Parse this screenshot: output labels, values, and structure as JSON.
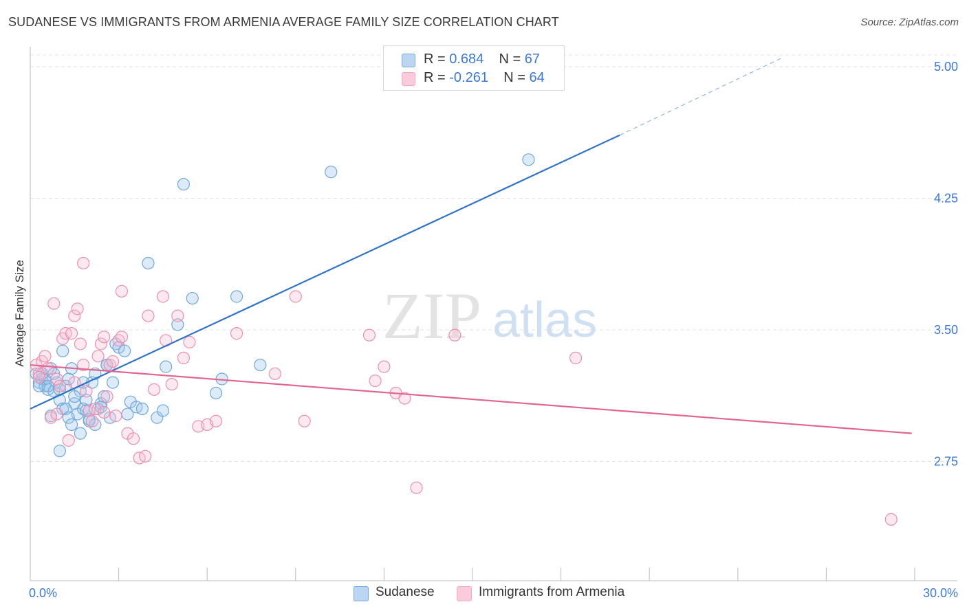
{
  "title": "SUDANESE VS IMMIGRANTS FROM ARMENIA AVERAGE FAMILY SIZE CORRELATION CHART",
  "source": "Source: ZipAtlas.com",
  "watermark": {
    "zip": "ZIP",
    "atlas": "atlas"
  },
  "legend_box": {
    "rows": [
      {
        "r_label": "R =",
        "r_value": "0.684",
        "n_label": "N =",
        "n_value": "67"
      },
      {
        "r_label": "R =",
        "r_value": "-0.261",
        "n_label": "N =",
        "n_value": "64"
      }
    ]
  },
  "bottom_legend": [
    "Sudanese",
    "Immigrants from Armenia"
  ],
  "chart_data": {
    "type": "scatter",
    "title": "SUDANESE VS IMMIGRANTS FROM ARMENIA AVERAGE FAMILY SIZE CORRELATION CHART",
    "xlabel": "",
    "ylabel": "Average Family Size",
    "xlim": [
      0,
      30
    ],
    "ylim": [
      2.0,
      5.15
    ],
    "x_tick_labels": [
      "0.0%",
      "30.0%"
    ],
    "y_ticks": [
      2.75,
      3.5,
      4.25,
      5.0
    ],
    "y_tick_labels": [
      "2.75",
      "3.50",
      "4.25",
      "5.00"
    ],
    "grid": "horizontal dashed",
    "legend_position": "top-center",
    "colors": {
      "blue": "#6fa8dc",
      "blue_line": "#2f73c9",
      "pink": "#f4a7c0",
      "pink_line": "#e0668f",
      "tick_text": "#3c78d8"
    },
    "series": [
      {
        "name": "Sudanese",
        "color": "#6fa8dc",
        "trend": {
          "x0": 0,
          "y0": 3.05,
          "x1": 20.0,
          "y1": 4.61,
          "dashed_to_x": 25.5,
          "dashed_to_y": 5.05
        },
        "points": [
          [
            0.2,
            3.25
          ],
          [
            0.3,
            3.2
          ],
          [
            0.4,
            3.22
          ],
          [
            0.5,
            3.18
          ],
          [
            0.6,
            3.16
          ],
          [
            0.7,
            3.28
          ],
          [
            0.8,
            3.15
          ],
          [
            0.9,
            3.2
          ],
          [
            1.0,
            3.1
          ],
          [
            1.1,
            3.05
          ],
          [
            1.2,
            3.18
          ],
          [
            1.3,
            3.22
          ],
          [
            1.4,
            3.28
          ],
          [
            1.5,
            3.08
          ],
          [
            1.6,
            3.02
          ],
          [
            1.7,
            3.15
          ],
          [
            1.8,
            3.05
          ],
          [
            1.9,
            3.1
          ],
          [
            2.0,
            2.98
          ],
          [
            2.1,
            3.2
          ],
          [
            2.2,
            3.25
          ],
          [
            2.3,
            3.05
          ],
          [
            2.4,
            3.08
          ],
          [
            2.5,
            3.12
          ],
          [
            2.6,
            3.3
          ],
          [
            2.7,
            3.0
          ],
          [
            2.8,
            3.2
          ],
          [
            2.9,
            3.42
          ],
          [
            3.0,
            3.4
          ],
          [
            3.2,
            3.38
          ],
          [
            3.3,
            3.02
          ],
          [
            3.4,
            3.09
          ],
          [
            3.6,
            3.06
          ],
          [
            3.8,
            3.05
          ],
          [
            4.0,
            3.88
          ],
          [
            4.3,
            3.0
          ],
          [
            4.5,
            3.04
          ],
          [
            4.6,
            3.29
          ],
          [
            5.0,
            3.53
          ],
          [
            5.2,
            4.33
          ],
          [
            5.5,
            3.68
          ],
          [
            6.3,
            3.14
          ],
          [
            6.5,
            3.22
          ],
          [
            7.0,
            3.69
          ],
          [
            7.8,
            3.3
          ],
          [
            10.2,
            4.4
          ],
          [
            16.9,
            4.47
          ],
          [
            0.5,
            3.22
          ],
          [
            0.6,
            3.18
          ],
          [
            0.8,
            3.25
          ],
          [
            1.0,
            3.16
          ],
          [
            1.2,
            3.05
          ],
          [
            1.3,
            3.0
          ],
          [
            1.4,
            2.96
          ],
          [
            1.5,
            3.12
          ],
          [
            1.7,
            2.91
          ],
          [
            1.9,
            3.04
          ],
          [
            2.0,
            2.99
          ],
          [
            2.2,
            2.96
          ],
          [
            2.4,
            3.06
          ],
          [
            0.3,
            3.18
          ],
          [
            0.4,
            3.25
          ],
          [
            1.0,
            2.81
          ],
          [
            1.8,
            3.2
          ],
          [
            2.6,
            3.3
          ],
          [
            1.1,
            3.38
          ],
          [
            0.7,
            3.01
          ]
        ]
      },
      {
        "name": "Immigrants from Armenia",
        "color": "#f4a7c0",
        "trend": {
          "x0": 0,
          "y0": 3.3,
          "x1": 29.9,
          "y1": 2.91
        },
        "points": [
          [
            0.2,
            3.3
          ],
          [
            0.3,
            3.25
          ],
          [
            0.4,
            3.32
          ],
          [
            0.5,
            3.35
          ],
          [
            0.6,
            3.28
          ],
          [
            0.7,
            3.0
          ],
          [
            0.8,
            3.65
          ],
          [
            0.9,
            3.22
          ],
          [
            1.0,
            3.18
          ],
          [
            1.1,
            3.45
          ],
          [
            1.2,
            3.48
          ],
          [
            1.3,
            2.87
          ],
          [
            1.4,
            3.48
          ],
          [
            1.5,
            3.58
          ],
          [
            1.6,
            3.62
          ],
          [
            1.7,
            3.42
          ],
          [
            1.8,
            3.3
          ],
          [
            1.9,
            3.15
          ],
          [
            2.0,
            3.04
          ],
          [
            2.1,
            2.98
          ],
          [
            2.2,
            3.05
          ],
          [
            2.3,
            3.35
          ],
          [
            2.4,
            3.42
          ],
          [
            2.5,
            3.46
          ],
          [
            2.6,
            3.12
          ],
          [
            2.7,
            3.3
          ],
          [
            2.8,
            3.32
          ],
          [
            2.9,
            3.01
          ],
          [
            3.0,
            3.44
          ],
          [
            3.1,
            3.46
          ],
          [
            3.3,
            2.91
          ],
          [
            3.5,
            2.88
          ],
          [
            3.7,
            2.77
          ],
          [
            3.9,
            2.78
          ],
          [
            4.0,
            3.58
          ],
          [
            4.2,
            3.16
          ],
          [
            4.5,
            3.69
          ],
          [
            4.6,
            3.44
          ],
          [
            4.8,
            3.19
          ],
          [
            5.0,
            3.58
          ],
          [
            5.2,
            3.34
          ],
          [
            5.4,
            3.43
          ],
          [
            5.7,
            2.95
          ],
          [
            6.0,
            2.96
          ],
          [
            6.3,
            2.98
          ],
          [
            7.0,
            3.48
          ],
          [
            8.3,
            3.25
          ],
          [
            9.0,
            3.69
          ],
          [
            9.3,
            2.98
          ],
          [
            11.5,
            3.47
          ],
          [
            11.7,
            3.21
          ],
          [
            12.0,
            3.29
          ],
          [
            12.4,
            3.14
          ],
          [
            12.7,
            3.11
          ],
          [
            13.1,
            2.6
          ],
          [
            14.4,
            3.47
          ],
          [
            18.5,
            3.34
          ],
          [
            29.2,
            2.42
          ],
          [
            1.8,
            3.88
          ],
          [
            2.5,
            3.03
          ],
          [
            0.3,
            3.23
          ],
          [
            1.5,
            3.2
          ],
          [
            3.1,
            3.72
          ],
          [
            0.9,
            3.02
          ]
        ]
      }
    ]
  }
}
